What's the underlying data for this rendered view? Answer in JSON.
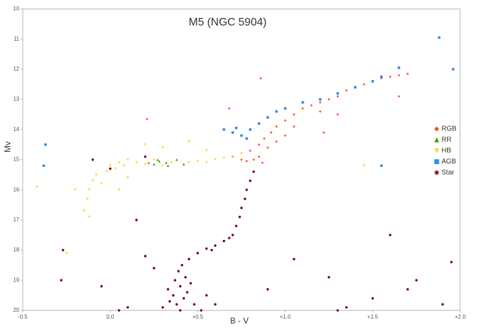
{
  "chart_data": {
    "type": "scatter",
    "title": "M5 (NGC 5904)",
    "x_label": "B - V",
    "y_label": "Mv",
    "xlim": [
      -0.5,
      2.0
    ],
    "ylim": [
      20,
      10
    ],
    "xticks": [
      -0.5,
      {
        "value": 0,
        "label": "0.0"
      },
      {
        "value": 0.5,
        "label": "+0.5"
      },
      {
        "value": 1,
        "label": "+1.0"
      },
      {
        "value": 1.5,
        "label": "+1.5"
      },
      {
        "value": 2,
        "label": "+2.0"
      }
    ],
    "yticks": [
      10,
      11,
      12,
      13,
      14,
      15,
      16,
      17,
      18,
      19,
      20
    ],
    "grid": false,
    "legend": "right",
    "series": [
      {
        "name": "RGB",
        "color": "#ff4a12",
        "marker": "diamond",
        "x": [
          0.75,
          0.78,
          0.82,
          0.85,
          0.8,
          0.85,
          0.88,
          0.92,
          0.95,
          1.0,
          1.05,
          1.1,
          1.15,
          1.2,
          1.25,
          1.3,
          1.35,
          1.4,
          1.45,
          1.5,
          1.55,
          1.6,
          1.65,
          1.7,
          0.9,
          0.95,
          1.0,
          1.05,
          1.2,
          0.87,
          0.7,
          0.86,
          0.21,
          1.22,
          1.65,
          1.3,
          0.68
        ],
        "values": [
          15.0,
          15.05,
          15.0,
          14.9,
          14.7,
          14.5,
          14.3,
          14.1,
          13.9,
          13.7,
          13.5,
          13.3,
          13.2,
          13.1,
          13.0,
          12.9,
          12.7,
          12.6,
          12.5,
          12.4,
          12.3,
          12.25,
          12.2,
          12.15,
          14.6,
          14.4,
          14.2,
          13.9,
          13.4,
          15.1,
          14.9,
          12.3,
          13.65,
          14.1,
          12.9,
          13.5,
          13.3
        ]
      },
      {
        "name": "RR",
        "color": "#4e9a06",
        "marker": "triangle",
        "x": [
          0.22,
          0.25,
          0.28,
          0.32,
          0.38,
          0.42,
          0.33,
          0.27
        ],
        "values": [
          15.1,
          15.15,
          15.05,
          15.1,
          15.0,
          15.15,
          15.2,
          15.0
        ]
      },
      {
        "name": "HB",
        "color": "#ffd320",
        "marker": "triangle-down",
        "x": [
          -0.15,
          -0.13,
          -0.12,
          -0.1,
          -0.08,
          -0.05,
          -0.02,
          0.0,
          0.03,
          0.05,
          0.08,
          0.1,
          0.15,
          0.2,
          0.25,
          0.3,
          0.35,
          0.45,
          0.5,
          0.55,
          0.6,
          0.65,
          0.7,
          0.75,
          0.3,
          0.2,
          0.45,
          -0.2,
          -0.42,
          -0.25,
          1.45,
          0.1,
          -0.12,
          0.05,
          0.55
        ],
        "values": [
          16.7,
          16.3,
          16.0,
          15.7,
          15.5,
          15.8,
          15.4,
          15.2,
          15.3,
          15.1,
          15.2,
          15.0,
          15.1,
          15.15,
          15.0,
          15.2,
          15.1,
          15.1,
          15.05,
          15.1,
          15.0,
          14.95,
          14.9,
          14.8,
          14.6,
          14.5,
          14.4,
          16.0,
          15.9,
          18.1,
          15.2,
          15.6,
          16.9,
          16.0,
          14.7
        ]
      },
      {
        "name": "AGB",
        "color": "#2a8fe8",
        "marker": "square",
        "x": [
          0.65,
          0.7,
          0.75,
          0.8,
          0.85,
          0.9,
          0.95,
          1.0,
          1.1,
          1.2,
          1.3,
          1.4,
          1.5,
          1.55,
          1.65,
          1.88,
          1.96,
          -0.37,
          -0.38,
          1.55,
          0.78,
          0.72
        ],
        "values": [
          14.0,
          14.1,
          14.2,
          14.0,
          13.8,
          13.6,
          13.4,
          13.3,
          13.1,
          13.0,
          12.8,
          12.6,
          12.4,
          12.25,
          11.95,
          10.95,
          12.0,
          14.5,
          15.2,
          15.2,
          14.3,
          13.95
        ]
      },
      {
        "name": "Star",
        "color": "#7a0026",
        "marker": "asterisk",
        "x": [
          0.4,
          0.38,
          0.42,
          0.36,
          0.44,
          0.4,
          0.37,
          0.43,
          0.39,
          0.41,
          0.45,
          0.5,
          0.55,
          0.6,
          0.65,
          0.7,
          0.72,
          0.74,
          0.75,
          0.77,
          0.78,
          0.8,
          0.82,
          0.48,
          0.34,
          0.46,
          0.33,
          0.52,
          0.3,
          0.58,
          0.68,
          0.25,
          0.55,
          0.6,
          0.1,
          -0.05,
          -0.28,
          -0.27,
          1.05,
          1.25,
          1.5,
          1.75,
          1.9,
          1.95,
          1.35,
          1.6,
          0.9,
          0.15,
          0.2,
          1.3,
          1.7,
          0.05,
          -0.1,
          0.0,
          0.2
        ],
        "values": [
          20.0,
          19.8,
          19.6,
          19.5,
          19.4,
          19.2,
          19.0,
          18.9,
          18.7,
          18.5,
          18.3,
          18.1,
          17.95,
          17.85,
          17.7,
          17.5,
          17.2,
          16.9,
          16.6,
          16.3,
          16.0,
          15.7,
          15.4,
          19.8,
          19.7,
          19.1,
          19.3,
          20.0,
          19.9,
          18.0,
          17.6,
          18.6,
          19.5,
          19.8,
          19.9,
          19.2,
          19.0,
          18.0,
          18.3,
          18.9,
          19.6,
          19.0,
          19.8,
          18.4,
          19.9,
          17.5,
          19.3,
          17.0,
          18.2,
          20.0,
          19.3,
          20.0,
          15.0,
          15.3,
          14.9
        ]
      }
    ]
  }
}
